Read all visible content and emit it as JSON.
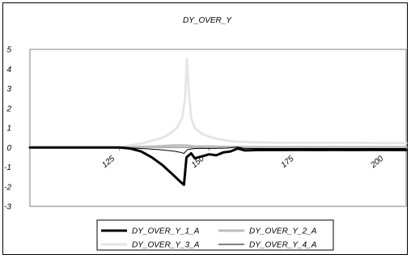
{
  "chart_data": {
    "type": "line",
    "title": "DY_OVER_Y",
    "xlabel": "",
    "ylabel": "",
    "xlim": [
      100,
      205
    ],
    "ylim": [
      -3,
      5
    ],
    "x_ticks": [
      "125",
      "150",
      "175",
      "200"
    ],
    "x_tick_values": [
      125,
      150,
      175,
      200
    ],
    "y_ticks": [
      "5",
      "4",
      "3",
      "2",
      "1",
      "0",
      "-1",
      "-2",
      "-3"
    ],
    "y_tick_values": [
      5,
      4,
      3,
      2,
      1,
      0,
      -1,
      -2,
      -3
    ],
    "grid": false,
    "legend_position": "bottom",
    "colors": {
      "series1": "#000000",
      "series2": "#bdbdbd",
      "series3": "#e6e6e6",
      "series4": "#000000"
    },
    "series": [
      {
        "name": "DY_OVER_Y_1_A",
        "points": [
          [
            100,
            0
          ],
          [
            125,
            0
          ],
          [
            128,
            -0.05
          ],
          [
            131,
            -0.2
          ],
          [
            134,
            -0.5
          ],
          [
            137,
            -0.9
          ],
          [
            140,
            -1.4
          ],
          [
            142,
            -1.75
          ],
          [
            143,
            -1.9
          ],
          [
            143.7,
            -0.5
          ],
          [
            145,
            -0.3
          ],
          [
            146,
            -0.55
          ],
          [
            148,
            -0.45
          ],
          [
            150,
            -0.35
          ],
          [
            152,
            -0.4
          ],
          [
            154,
            -0.25
          ],
          [
            156,
            -0.2
          ],
          [
            158,
            -0.05
          ],
          [
            160,
            -0.15
          ],
          [
            165,
            -0.12
          ],
          [
            170,
            -0.13
          ],
          [
            175,
            -0.12
          ],
          [
            180,
            -0.13
          ],
          [
            185,
            -0.12
          ],
          [
            190,
            -0.13
          ],
          [
            195,
            -0.12
          ],
          [
            205,
            -0.13
          ]
        ]
      },
      {
        "name": "DY_OVER_Y_2_A",
        "points": [
          [
            100,
            0
          ],
          [
            125,
            0
          ],
          [
            130,
            0.02
          ],
          [
            135,
            0.05
          ],
          [
            140,
            0.1
          ],
          [
            144,
            0.1
          ],
          [
            146,
            0.05
          ],
          [
            150,
            0.05
          ],
          [
            155,
            0.03
          ],
          [
            160,
            0.02
          ],
          [
            165,
            0.02
          ],
          [
            170,
            0.02
          ],
          [
            175,
            0.02
          ],
          [
            180,
            0.02
          ],
          [
            185,
            0.02
          ],
          [
            190,
            0.02
          ],
          [
            195,
            0.02
          ],
          [
            205,
            0.02
          ]
        ]
      },
      {
        "name": "DY_OVER_Y_3_A",
        "points": [
          [
            100,
            0
          ],
          [
            125,
            0
          ],
          [
            128,
            0.1
          ],
          [
            131,
            0.2
          ],
          [
            134,
            0.35
          ],
          [
            137,
            0.5
          ],
          [
            139,
            0.7
          ],
          [
            141,
            1.0
          ],
          [
            142.5,
            1.5
          ],
          [
            143.3,
            2.5
          ],
          [
            143.8,
            4.5
          ],
          [
            144.3,
            3.0
          ],
          [
            145,
            1.5
          ],
          [
            146,
            1.0
          ],
          [
            148,
            0.7
          ],
          [
            150,
            0.55
          ],
          [
            152,
            0.45
          ],
          [
            155,
            0.35
          ],
          [
            158,
            0.3
          ],
          [
            162,
            0.27
          ],
          [
            168,
            0.25
          ],
          [
            175,
            0.25
          ],
          [
            182,
            0.24
          ],
          [
            190,
            0.24
          ],
          [
            198,
            0.23
          ],
          [
            205,
            0.23
          ]
        ]
      },
      {
        "name": "DY_OVER_Y_4_A",
        "points": [
          [
            100,
            0
          ],
          [
            125,
            0
          ],
          [
            128,
            -0.02
          ],
          [
            131,
            -0.05
          ],
          [
            134,
            -0.08
          ],
          [
            137,
            -0.12
          ],
          [
            140,
            -0.18
          ],
          [
            142,
            -0.25
          ],
          [
            143,
            -0.3
          ],
          [
            144,
            -0.1
          ],
          [
            146,
            -0.05
          ],
          [
            148,
            -0.04
          ],
          [
            150,
            -0.05
          ],
          [
            155,
            -0.03
          ],
          [
            158,
            0.02
          ],
          [
            160,
            -0.05
          ],
          [
            165,
            -0.05
          ],
          [
            175,
            -0.05
          ],
          [
            185,
            -0.05
          ],
          [
            195,
            -0.05
          ],
          [
            205,
            -0.05
          ]
        ]
      }
    ]
  }
}
